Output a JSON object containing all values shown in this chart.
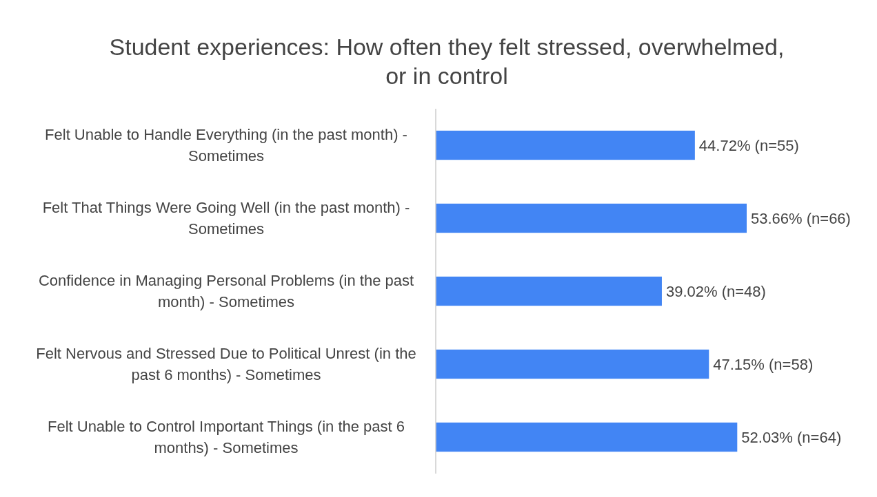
{
  "chart_data": {
    "type": "bar",
    "orientation": "horizontal",
    "title": "Student experiences: How often they felt stressed, overwhelmed, or in control",
    "categories": [
      "Felt Unable to Handle Everything (in the past month) - Sometimes",
      "Felt That Things Were Going Well (in the past month) - Sometimes",
      "Confidence in Managing Personal Problems (in the past month) - Sometimes",
      "Felt Nervous and Stressed Due to Political Unrest (in the past 6 months) - Sometimes",
      "Felt Unable to Control Important Things (in the past 6 months) - Sometimes"
    ],
    "values": [
      44.72,
      53.66,
      39.02,
      47.15,
      52.03
    ],
    "value_labels": [
      "44.72% (n=55)",
      "53.66% (n=66)",
      "39.02% (n=48)",
      "47.15% (n=58)",
      "52.03% (n=64)"
    ],
    "color": "#4285f4"
  }
}
